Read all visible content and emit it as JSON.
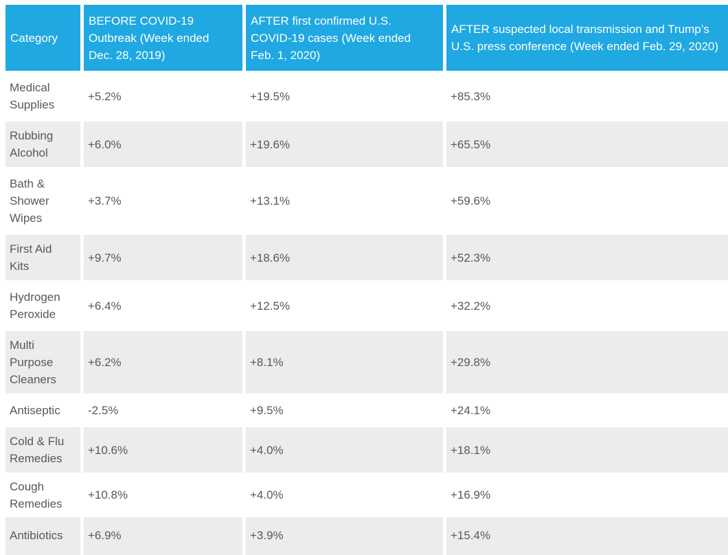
{
  "colors": {
    "header_bg": "#1fa8e1",
    "header_text": "#ffffff",
    "row_alt_bg": "#ececec",
    "row_bg": "#ffffff",
    "body_text": "#58585a"
  },
  "table": {
    "headers": [
      "Category",
      "BEFORE COVID-19 Outbreak (Week ended Dec. 28, 2019)",
      "AFTER first confirmed U.S. COVID-19 cases (Week ended Feb. 1, 2020)",
      "AFTER suspected local transmission and Trump’s U.S. press conference (Week ended Feb. 29, 2020)"
    ],
    "rows": [
      {
        "category": "Medical Supplies",
        "values": [
          "+5.2%",
          "+19.5%",
          "+85.3%"
        ]
      },
      {
        "category": "Rubbing Alcohol",
        "values": [
          "+6.0%",
          "+19.6%",
          "+65.5%"
        ]
      },
      {
        "category": "Bath & Shower Wipes",
        "values": [
          "+3.7%",
          "+13.1%",
          "+59.6%"
        ]
      },
      {
        "category": "First Aid Kits",
        "values": [
          "+9.7%",
          "+18.6%",
          "+52.3%"
        ]
      },
      {
        "category": "Hydrogen Peroxide",
        "values": [
          "+6.4%",
          "+12.5%",
          "+32.2%"
        ]
      },
      {
        "category": "Multi Purpose Cleaners",
        "values": [
          "+6.2%",
          "+8.1%",
          "+29.8%"
        ]
      },
      {
        "category": "Antiseptic",
        "values": [
          "-2.5%",
          "+9.5%",
          "+24.1%"
        ]
      },
      {
        "category": "Cold & Flu Remedies",
        "values": [
          "+10.6%",
          "+4.0%",
          "+18.1%"
        ]
      },
      {
        "category": "Cough Remedies",
        "values": [
          "+10.8%",
          "+4.0%",
          "+16.9%"
        ]
      },
      {
        "category": "Antibiotics",
        "values": [
          "+6.9%",
          "+3.9%",
          "+15.4%"
        ]
      }
    ]
  },
  "chart_data": {
    "type": "table",
    "title": "",
    "unit": "percent change in U.S. sales",
    "categories": [
      "Medical Supplies",
      "Rubbing Alcohol",
      "Bath & Shower Wipes",
      "First Aid Kits",
      "Hydrogen Peroxide",
      "Multi Purpose Cleaners",
      "Antiseptic",
      "Cold & Flu Remedies",
      "Cough Remedies",
      "Antibiotics"
    ],
    "series": [
      {
        "name": "BEFORE COVID-19 Outbreak (Week ended Dec. 28, 2019)",
        "values": [
          5.2,
          6.0,
          3.7,
          9.7,
          6.4,
          6.2,
          -2.5,
          10.6,
          10.8,
          6.9
        ]
      },
      {
        "name": "AFTER first confirmed U.S. COVID-19 cases (Week ended Feb. 1, 2020)",
        "values": [
          19.5,
          19.6,
          13.1,
          18.6,
          12.5,
          8.1,
          9.5,
          4.0,
          4.0,
          3.9
        ]
      },
      {
        "name": "AFTER suspected local transmission and Trump’s U.S. press conference (Week ended Feb. 29, 2020)",
        "values": [
          85.3,
          65.5,
          59.6,
          52.3,
          32.2,
          29.8,
          24.1,
          18.1,
          16.9,
          15.4
        ]
      }
    ]
  }
}
